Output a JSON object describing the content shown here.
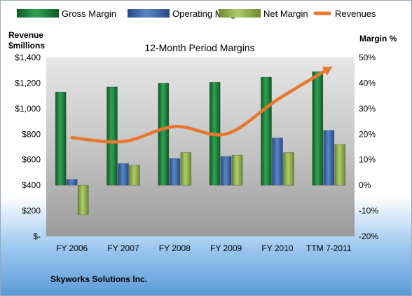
{
  "chart_data": {
    "type": "bar",
    "title": "12-Month Period Margins",
    "categories": [
      "FY 2006",
      "FY 2007",
      "FY 2008",
      "FY 2009",
      "FY 2010",
      "TTM 7-2011"
    ],
    "series": [
      {
        "name": "Gross Margin",
        "axis": "right",
        "values": [
          36.5,
          38.5,
          40,
          40.3,
          42.3,
          44.5
        ]
      },
      {
        "name": "Operating Margin",
        "axis": "right",
        "values": [
          2.3,
          8.5,
          10.5,
          11.3,
          18.5,
          21.5
        ]
      },
      {
        "name": "Net Margin",
        "axis": "right",
        "values": [
          -11.5,
          7.8,
          12.8,
          11.8,
          12.8,
          16
        ]
      },
      {
        "name": "Revenues",
        "type": "line",
        "axis": "left",
        "values": [
          773,
          742,
          860,
          802,
          1071,
          1313
        ]
      }
    ],
    "ylabel_left": "Revenue $millions",
    "ylabel_left_lines": [
      "Revenue",
      "$millions"
    ],
    "ylabel_right": "Margin %",
    "ylim_left": [
      0,
      1400
    ],
    "ylim_right": [
      -20,
      50
    ],
    "yticks_left": [
      "$-",
      "$200",
      "$400",
      "$600",
      "$800",
      "$1,000",
      "$1,200",
      "$1,400"
    ],
    "yticks_right": [
      "-20%",
      "-10%",
      "0%",
      "10%",
      "20%",
      "30%",
      "40%",
      "50%"
    ],
    "grid": false,
    "legend": "top",
    "colors": {
      "gross": "#1d7f3a",
      "operating": "#3b66ab",
      "net": "#8cae4a",
      "revenues": "#e8772e"
    },
    "footer": "Skyworks Solutions Inc."
  }
}
